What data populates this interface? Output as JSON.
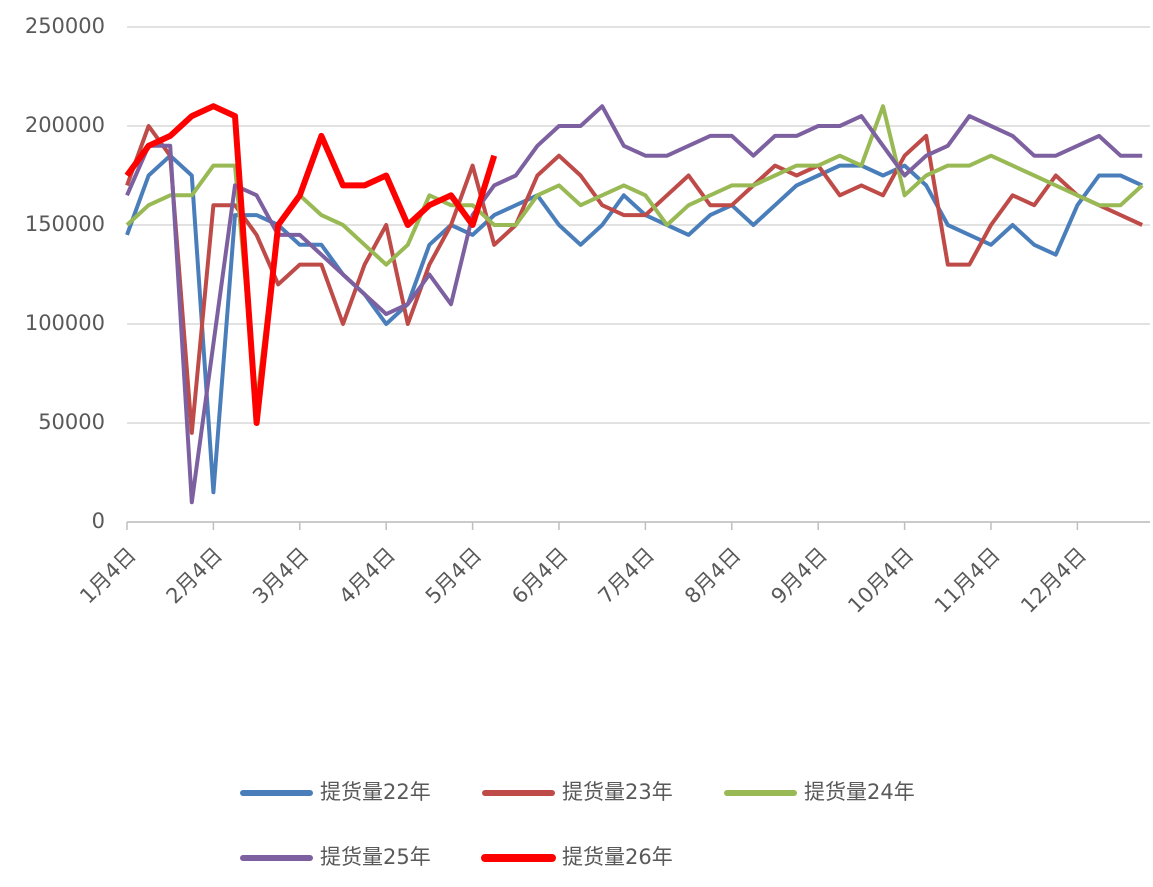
{
  "chart_data": {
    "type": "line",
    "categories": [
      "1月4日",
      null,
      null,
      null,
      "2月4日",
      null,
      null,
      null,
      "3月4日",
      null,
      null,
      null,
      "4月4日",
      null,
      null,
      null,
      "5月4日",
      null,
      null,
      null,
      "6月4日",
      null,
      null,
      null,
      "7月4日",
      null,
      null,
      null,
      "8月4日",
      null,
      null,
      null,
      "9月4日",
      null,
      null,
      null,
      "10月4日",
      null,
      null,
      null,
      "11月4日",
      null,
      null,
      null,
      "12月4日",
      null,
      null,
      null
    ],
    "ylim": [
      0,
      250000
    ],
    "yticks": [
      0,
      50000,
      100000,
      150000,
      200000,
      250000
    ],
    "grid": true,
    "series": [
      {
        "name": "提货量22年",
        "color": "#4a7ebb",
        "values": [
          145000,
          175000,
          185000,
          175000,
          15000,
          155000,
          155000,
          150000,
          140000,
          140000,
          125000,
          115000,
          100000,
          110000,
          140000,
          150000,
          145000,
          155000,
          160000,
          165000,
          150000,
          140000,
          150000,
          165000,
          155000,
          150000,
          145000,
          155000,
          160000,
          150000,
          160000,
          170000,
          175000,
          180000,
          180000,
          175000,
          180000,
          170000,
          150000,
          145000,
          140000,
          150000,
          140000,
          135000,
          160000,
          175000,
          175000,
          170000
        ]
      },
      {
        "name": "提货量23年",
        "color": "#be4b48",
        "values": [
          170000,
          200000,
          185000,
          45000,
          160000,
          160000,
          145000,
          120000,
          130000,
          130000,
          100000,
          130000,
          150000,
          100000,
          130000,
          150000,
          180000,
          140000,
          150000,
          175000,
          185000,
          175000,
          160000,
          155000,
          155000,
          165000,
          175000,
          160000,
          160000,
          170000,
          180000,
          175000,
          180000,
          165000,
          170000,
          165000,
          185000,
          195000,
          130000,
          130000,
          150000,
          165000,
          160000,
          175000,
          165000,
          160000,
          155000,
          150000
        ]
      },
      {
        "name": "提货量24年",
        "color": "#98b954",
        "values": [
          150000,
          160000,
          165000,
          165000,
          180000,
          180000,
          60000,
          150000,
          165000,
          155000,
          150000,
          140000,
          130000,
          140000,
          165000,
          160000,
          160000,
          150000,
          150000,
          165000,
          170000,
          160000,
          165000,
          170000,
          165000,
          150000,
          160000,
          165000,
          170000,
          170000,
          175000,
          180000,
          180000,
          185000,
          180000,
          210000,
          165000,
          175000,
          180000,
          180000,
          185000,
          180000,
          175000,
          170000,
          165000,
          160000,
          160000,
          170000
        ]
      },
      {
        "name": "提货量25年",
        "color": "#7d60a0",
        "values": [
          165000,
          190000,
          190000,
          10000,
          90000,
          170000,
          165000,
          145000,
          145000,
          135000,
          125000,
          115000,
          105000,
          110000,
          125000,
          110000,
          155000,
          170000,
          175000,
          190000,
          200000,
          200000,
          210000,
          190000,
          185000,
          185000,
          190000,
          195000,
          195000,
          185000,
          195000,
          195000,
          200000,
          200000,
          205000,
          190000,
          175000,
          185000,
          190000,
          205000,
          200000,
          195000,
          185000,
          185000,
          190000,
          195000,
          185000,
          185000
        ]
      },
      {
        "name": "提货量26年",
        "color": "#ff0000",
        "width": 6,
        "values": [
          175000,
          190000,
          195000,
          205000,
          210000,
          205000,
          50000,
          150000,
          165000,
          195000,
          170000,
          170000,
          175000,
          150000,
          160000,
          165000,
          150000,
          185000,
          null,
          null,
          null,
          null,
          null,
          null,
          null,
          null,
          null,
          null,
          null,
          null,
          null,
          null,
          null,
          null,
          null,
          null,
          null,
          null,
          null,
          null,
          null,
          null,
          null,
          null,
          null,
          null,
          null,
          null
        ]
      }
    ]
  }
}
